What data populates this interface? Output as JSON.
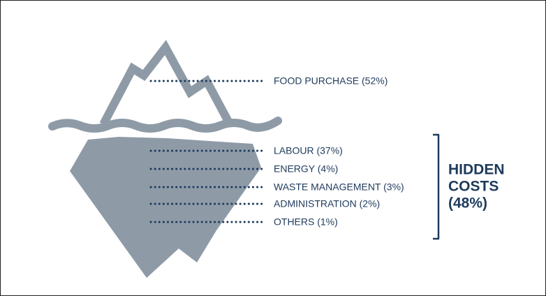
{
  "above": {
    "items": [
      "FOOD PURCHASE (52%)"
    ]
  },
  "below": {
    "items": [
      "LABOUR (37%)",
      "ENERGY (4%)",
      "WASTE MANAGEMENT (3%)",
      "ADMINISTRATION (2%)",
      "OTHERS (1%)"
    ],
    "summary": [
      "HIDDEN",
      "COSTS",
      "(48%)"
    ]
  }
}
